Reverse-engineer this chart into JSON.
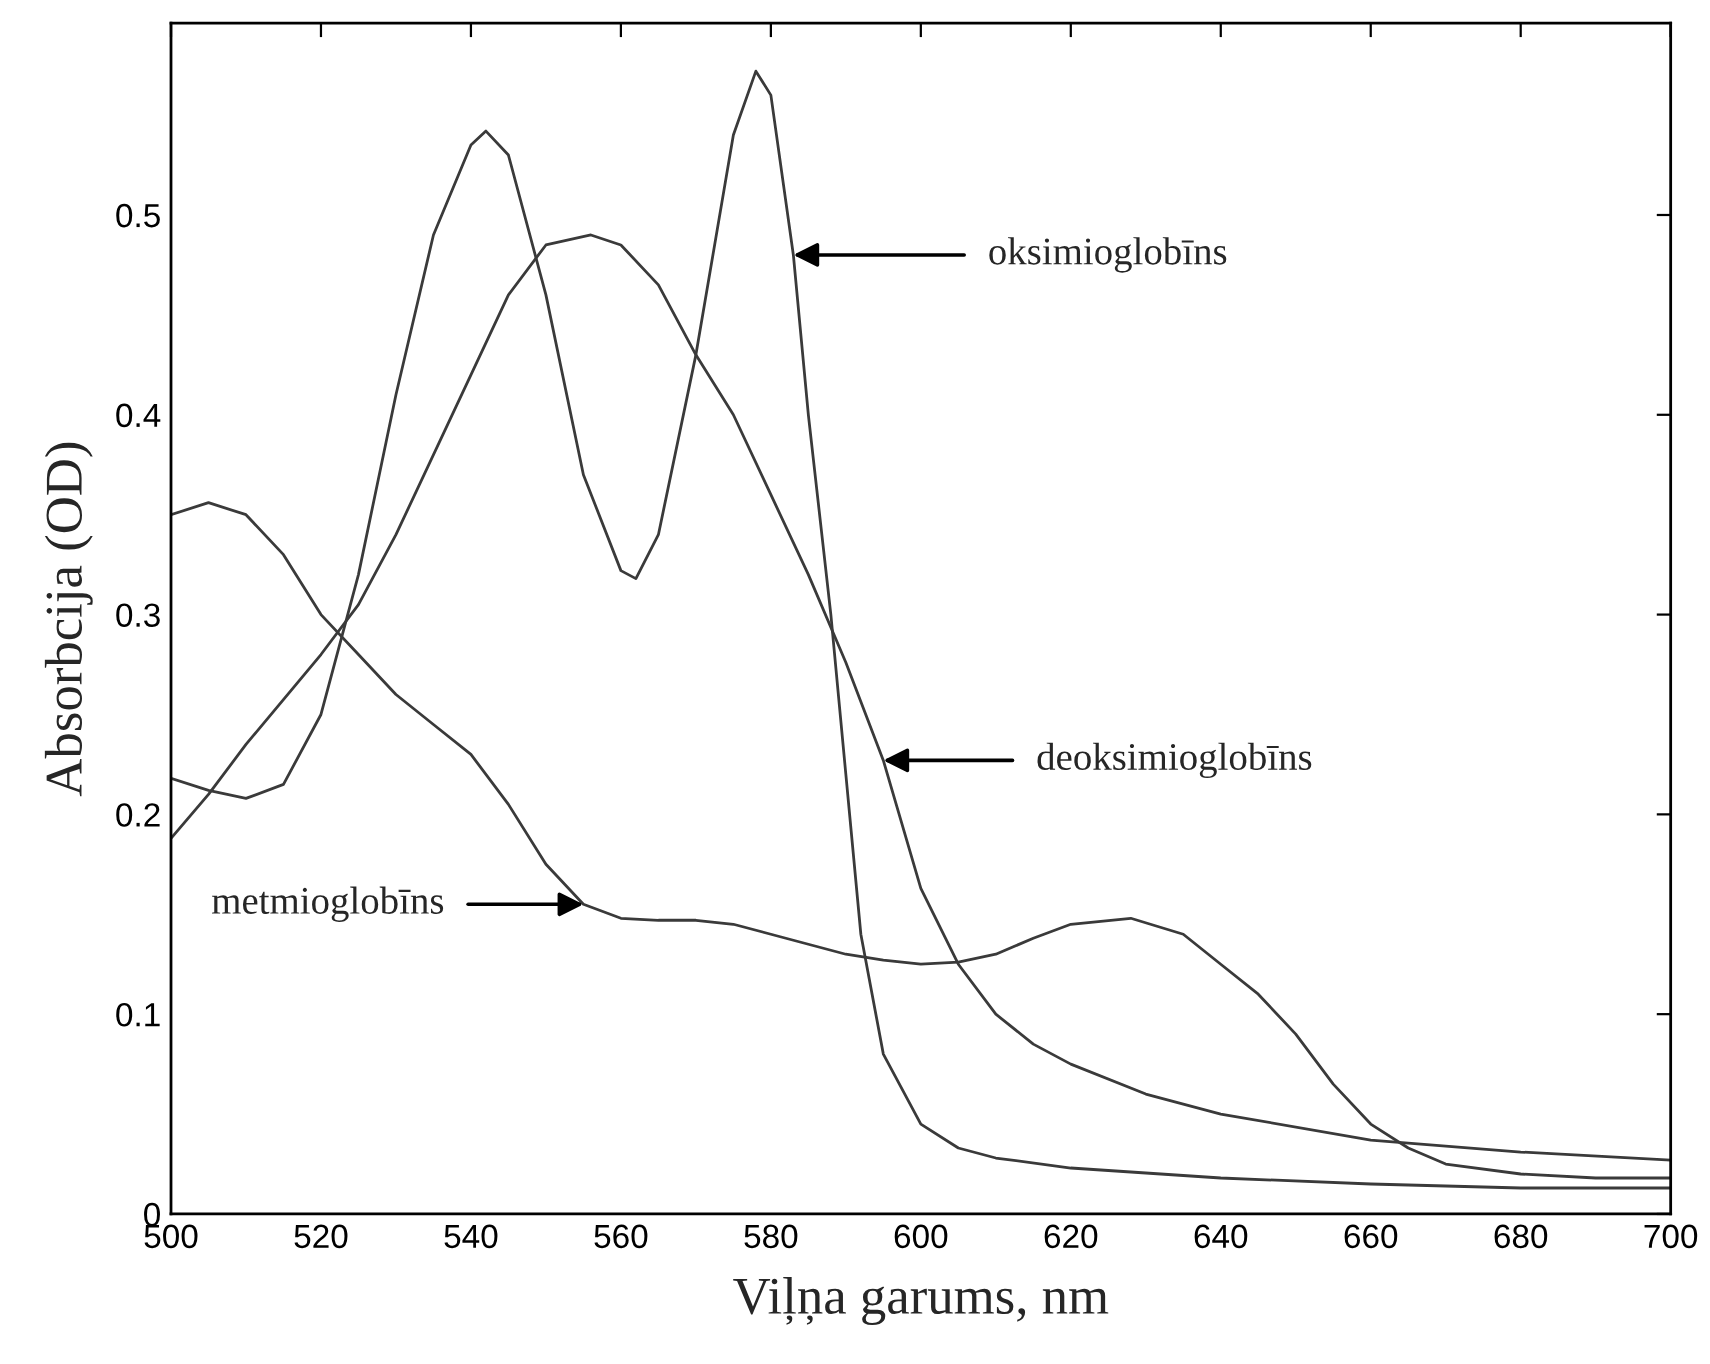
{
  "chart_data": {
    "type": "line",
    "xlabel": "Viļņa garums, nm",
    "ylabel": "Absorbcija (OD)",
    "xlim": [
      500,
      700
    ],
    "ylim": [
      0,
      0.596
    ],
    "xticks": [
      500,
      520,
      540,
      560,
      580,
      600,
      620,
      640,
      660,
      680,
      700
    ],
    "yticks": [
      0,
      0.1,
      0.2,
      0.3,
      0.4,
      0.5
    ],
    "grid": false,
    "legend": false,
    "marker": "none",
    "line_style": "solid",
    "series": [
      {
        "color": "#3a3a3a",
        "x": [
          500,
          505,
          510,
          515,
          520,
          525,
          530,
          535,
          540,
          542,
          545,
          550,
          555,
          560,
          562,
          565,
          570,
          575,
          578,
          580,
          583,
          585,
          588,
          590,
          592,
          595,
          600,
          605,
          610,
          620,
          640,
          660,
          680,
          700
        ],
        "values": [
          0.218,
          0.212,
          0.208,
          0.215,
          0.25,
          0.32,
          0.41,
          0.49,
          0.535,
          0.542,
          0.53,
          0.46,
          0.37,
          0.322,
          0.318,
          0.34,
          0.43,
          0.54,
          0.572,
          0.56,
          0.48,
          0.4,
          0.3,
          0.22,
          0.14,
          0.08,
          0.045,
          0.033,
          0.028,
          0.023,
          0.018,
          0.015,
          0.013,
          0.013
        ]
      },
      {
        "color": "#3a3a3a",
        "x": [
          500,
          505,
          510,
          520,
          525,
          530,
          540,
          545,
          550,
          556,
          560,
          565,
          570,
          575,
          580,
          585,
          590,
          595,
          600,
          605,
          610,
          615,
          620,
          630,
          640,
          660,
          680,
          700
        ],
        "values": [
          0.188,
          0.21,
          0.235,
          0.28,
          0.305,
          0.34,
          0.42,
          0.46,
          0.485,
          0.49,
          0.485,
          0.465,
          0.43,
          0.4,
          0.36,
          0.32,
          0.276,
          0.227,
          0.163,
          0.125,
          0.1,
          0.085,
          0.075,
          0.06,
          0.05,
          0.037,
          0.031,
          0.027
        ]
      },
      {
        "color": "#3a3a3a",
        "x": [
          500,
          505,
          510,
          515,
          520,
          525,
          530,
          535,
          540,
          545,
          550,
          555,
          560,
          565,
          570,
          575,
          580,
          585,
          590,
          595,
          600,
          605,
          610,
          615,
          620,
          628,
          635,
          640,
          645,
          650,
          655,
          660,
          665,
          670,
          680,
          690,
          700
        ],
        "values": [
          0.35,
          0.356,
          0.35,
          0.33,
          0.3,
          0.28,
          0.26,
          0.245,
          0.23,
          0.205,
          0.175,
          0.155,
          0.148,
          0.147,
          0.147,
          0.145,
          0.14,
          0.135,
          0.13,
          0.127,
          0.125,
          0.126,
          0.13,
          0.138,
          0.145,
          0.148,
          0.14,
          0.125,
          0.11,
          0.09,
          0.065,
          0.045,
          0.033,
          0.025,
          0.02,
          0.018,
          0.018
        ]
      }
    ],
    "annotations": [
      {
        "text": "oksimioglobīns",
        "x": 583,
        "y": 0.48
      },
      {
        "text": "deoksimioglobīns",
        "x": 595,
        "y": 0.227
      },
      {
        "text": "metmioglobīns",
        "x": 555,
        "y": 0.155
      }
    ]
  }
}
